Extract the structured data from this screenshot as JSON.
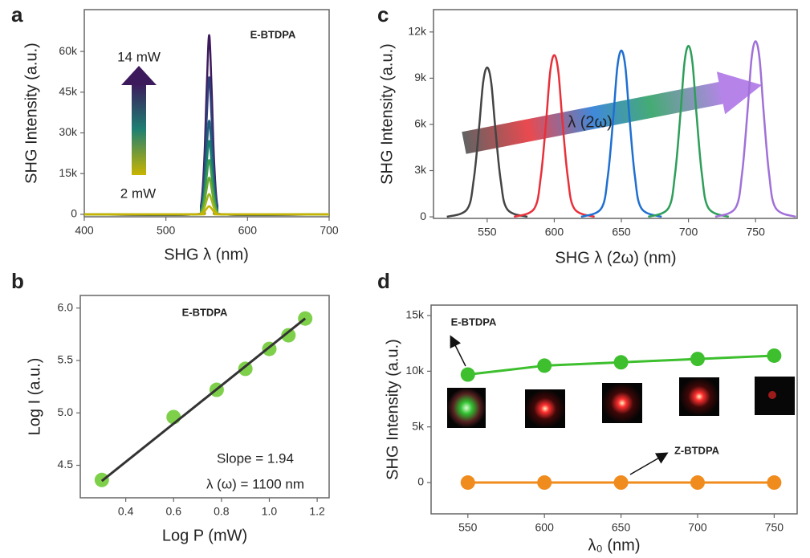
{
  "chart_data": [
    {
      "type": "line",
      "panel": "a",
      "xlabel": "SHG λ (nm)",
      "ylabel": "SHG Intensity (a.u.)",
      "annotations": [
        "E-BTDPA",
        "14 mW",
        "2 mW"
      ],
      "x": [
        400,
        535,
        543,
        547,
        550,
        553,
        556,
        559,
        563,
        571,
        700
      ],
      "series": [
        {
          "color": "#3d1a5c",
          "values": [
            0,
            0,
            3300,
            19800,
            46200,
            66000,
            46200,
            19800,
            3300,
            0,
            0
          ]
        },
        {
          "color": "#2f3f7a",
          "values": [
            0,
            0,
            2525,
            15150,
            35350,
            50500,
            35350,
            15150,
            2525,
            0,
            0
          ]
        },
        {
          "color": "#1f5f7a",
          "values": [
            0,
            0,
            1725,
            10350,
            24150,
            34500,
            24150,
            10350,
            1725,
            0,
            0
          ]
        },
        {
          "color": "#1b7f6e",
          "values": [
            0,
            0,
            1350,
            8100,
            18900,
            27000,
            18900,
            8100,
            1350,
            0,
            0
          ]
        },
        {
          "color": "#3a9a50",
          "values": [
            0,
            0,
            1000,
            6000,
            14000,
            20000,
            14000,
            6000,
            1000,
            0,
            0
          ]
        },
        {
          "color": "#6aaa30",
          "values": [
            0,
            0,
            675,
            4050,
            9450,
            13500,
            9450,
            4050,
            675,
            0,
            0
          ]
        },
        {
          "color": "#a4b820",
          "values": [
            0,
            0,
            375,
            2250,
            5250,
            7500,
            5250,
            2250,
            375,
            0,
            0
          ]
        },
        {
          "color": "#c8b400",
          "values": [
            0,
            0,
            150,
            900,
            2100,
            3000,
            2100,
            900,
            150,
            0,
            0
          ]
        }
      ],
      "xlim": [
        400,
        700
      ],
      "xticks": [
        400,
        500,
        600,
        700
      ],
      "ylim": [
        -900,
        75400
      ],
      "yticks": [
        0,
        {
          "value": 15000,
          "label": "15k"
        },
        {
          "value": 30000,
          "label": "30k"
        },
        {
          "value": 45000,
          "label": "45k"
        },
        {
          "value": 60000,
          "label": "60k"
        }
      ]
    },
    {
      "type": "scatter",
      "panel": "b",
      "xlabel": "Log P (mW)",
      "ylabel": "Log I (a.u.)",
      "annotations": [
        "E-BTDPA",
        "Slope = 1.94",
        "λ (ω) = 1100 nm"
      ],
      "x": [
        0.3,
        0.6,
        0.78,
        0.9,
        1.0,
        1.08,
        1.15
      ],
      "values": [
        4.36,
        4.96,
        5.22,
        5.42,
        5.61,
        5.74,
        5.9
      ],
      "color": "#7ed04b",
      "fit_line": {
        "x": [
          0.3,
          1.15
        ],
        "values": [
          4.35,
          5.9
        ],
        "color": "#333333"
      },
      "xlim": [
        0.21,
        1.25
      ],
      "xticks": [
        0.4,
        0.6,
        0.8,
        {
          "value": 1.0,
          "label": "1.0"
        },
        1.2
      ],
      "ylim": [
        4.19,
        6.12
      ],
      "yticks": [
        4.5,
        {
          "value": 5.0,
          "label": "5.0"
        },
        5.5,
        {
          "value": 6.0,
          "label": "6.0"
        }
      ]
    },
    {
      "type": "line",
      "panel": "c",
      "xlabel": "SHG λ (2ω) (nm)",
      "ylabel": "SHG Intensity (a.u.)",
      "annotations": [
        "λ (2ω)"
      ],
      "series": [
        {
          "color": "#444444",
          "x": [
            520,
            535,
            540,
            544,
            547,
            550,
            553,
            556,
            560,
            565,
            580
          ],
          "values": [
            0,
            485,
            2425,
            5820,
            8730,
            9700,
            8730,
            5820,
            2425,
            485,
            0
          ]
        },
        {
          "color": "#e8303a",
          "x": [
            570,
            585,
            590,
            594,
            597,
            600,
            603,
            606,
            610,
            615,
            630
          ],
          "values": [
            0,
            525,
            2625,
            6300,
            9450,
            10500,
            9450,
            6300,
            2625,
            525,
            0
          ]
        },
        {
          "color": "#1f6fd0",
          "x": [
            620,
            635,
            640,
            644,
            647,
            650,
            653,
            656,
            660,
            665,
            680
          ],
          "values": [
            0,
            540,
            2700,
            6480,
            9720,
            10800,
            9720,
            6480,
            2700,
            540,
            0
          ]
        },
        {
          "color": "#2e9e5a",
          "x": [
            670,
            685,
            690,
            694,
            697,
            700,
            703,
            706,
            710,
            715,
            730
          ],
          "values": [
            0,
            555,
            2775,
            6660,
            9990,
            11100,
            9990,
            6660,
            2775,
            555,
            0
          ]
        },
        {
          "color": "#a070d8",
          "x": [
            720,
            735,
            740,
            744,
            747,
            750,
            753,
            756,
            760,
            765,
            780
          ],
          "values": [
            0,
            570,
            2850,
            6840,
            10260,
            11400,
            10260,
            6840,
            2850,
            570,
            0
          ]
        }
      ],
      "xlim": [
        510,
        781
      ],
      "xticks": [
        550,
        600,
        650,
        700,
        750
      ],
      "ylim": [
        -100,
        13450
      ],
      "yticks": [
        0,
        {
          "value": 3000,
          "label": "3k"
        },
        {
          "value": 6000,
          "label": "6k"
        },
        {
          "value": 9000,
          "label": "9k"
        },
        {
          "value": 12000,
          "label": "12k"
        }
      ]
    },
    {
      "type": "line",
      "panel": "d",
      "xlabel": "λ₀ (nm)",
      "ylabel": "SHG Intensity (a.u.)",
      "markers": true,
      "x": [
        550,
        600,
        650,
        700,
        750
      ],
      "series": [
        {
          "name": "E-BTDPA",
          "color": "#3dbf2e",
          "values": [
            9700,
            10500,
            10800,
            11100,
            11400
          ]
        },
        {
          "name": "Z-BTDPA",
          "color": "#f08c1e",
          "values": [
            0,
            0,
            0,
            0,
            0
          ]
        }
      ],
      "xlim": [
        526,
        765
      ],
      "xticks": [
        550,
        600,
        650,
        700,
        750
      ],
      "ylim": [
        -2810,
        15940
      ],
      "yticks": [
        0,
        {
          "value": 5000,
          "label": "5k"
        },
        {
          "value": 10000,
          "label": "10k"
        },
        {
          "value": 15000,
          "label": "15k"
        }
      ]
    }
  ]
}
